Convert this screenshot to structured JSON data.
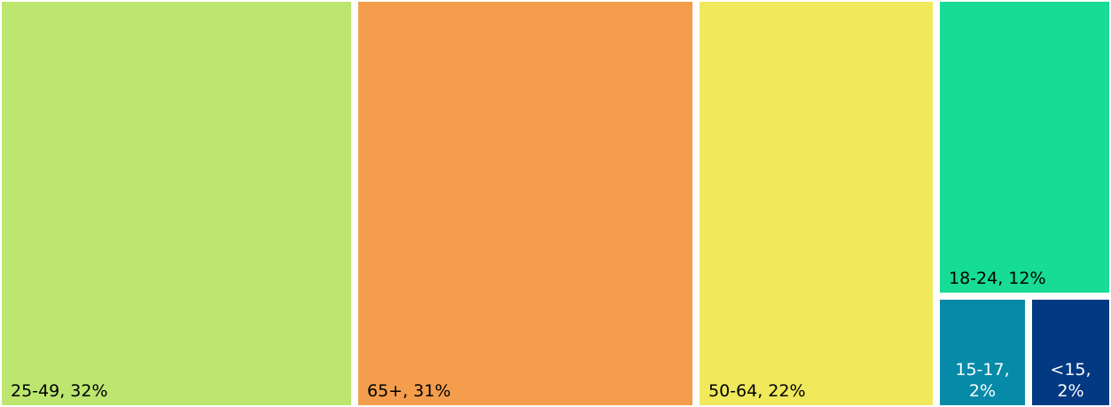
{
  "chart_data": {
    "type": "treemap",
    "title": "",
    "items": [
      {
        "label": "25-49, 32%",
        "label_lines": [
          "25-49, 32%"
        ],
        "category": "25-49",
        "value": 32,
        "color": "#bce66f",
        "text_color": "#000000"
      },
      {
        "label": "65+, 31%",
        "label_lines": [
          "65+, 31%"
        ],
        "category": "65+",
        "value": 31,
        "color": "#f49e4d",
        "text_color": "#000000"
      },
      {
        "label": "50-64, 22%",
        "label_lines": [
          "50-64, 22%"
        ],
        "category": "50-64",
        "value": 22,
        "color": "#efe95b",
        "text_color": "#000000"
      },
      {
        "label": "18-24, 12%",
        "label_lines": [
          "18-24, 12%"
        ],
        "category": "18-24",
        "value": 12,
        "color": "#17dc95",
        "text_color": "#000000"
      },
      {
        "label": "15-17, 2%",
        "label_lines": [
          "15-17,",
          "2%"
        ],
        "category": "15-17",
        "value": 2,
        "color": "#078aa8",
        "text_color": "#ffffff"
      },
      {
        "label": "<15, 2%",
        "label_lines": [
          "<15,",
          "2%"
        ],
        "category": "<15",
        "value": 2,
        "color": "#023982",
        "text_color": "#ffffff"
      }
    ]
  }
}
